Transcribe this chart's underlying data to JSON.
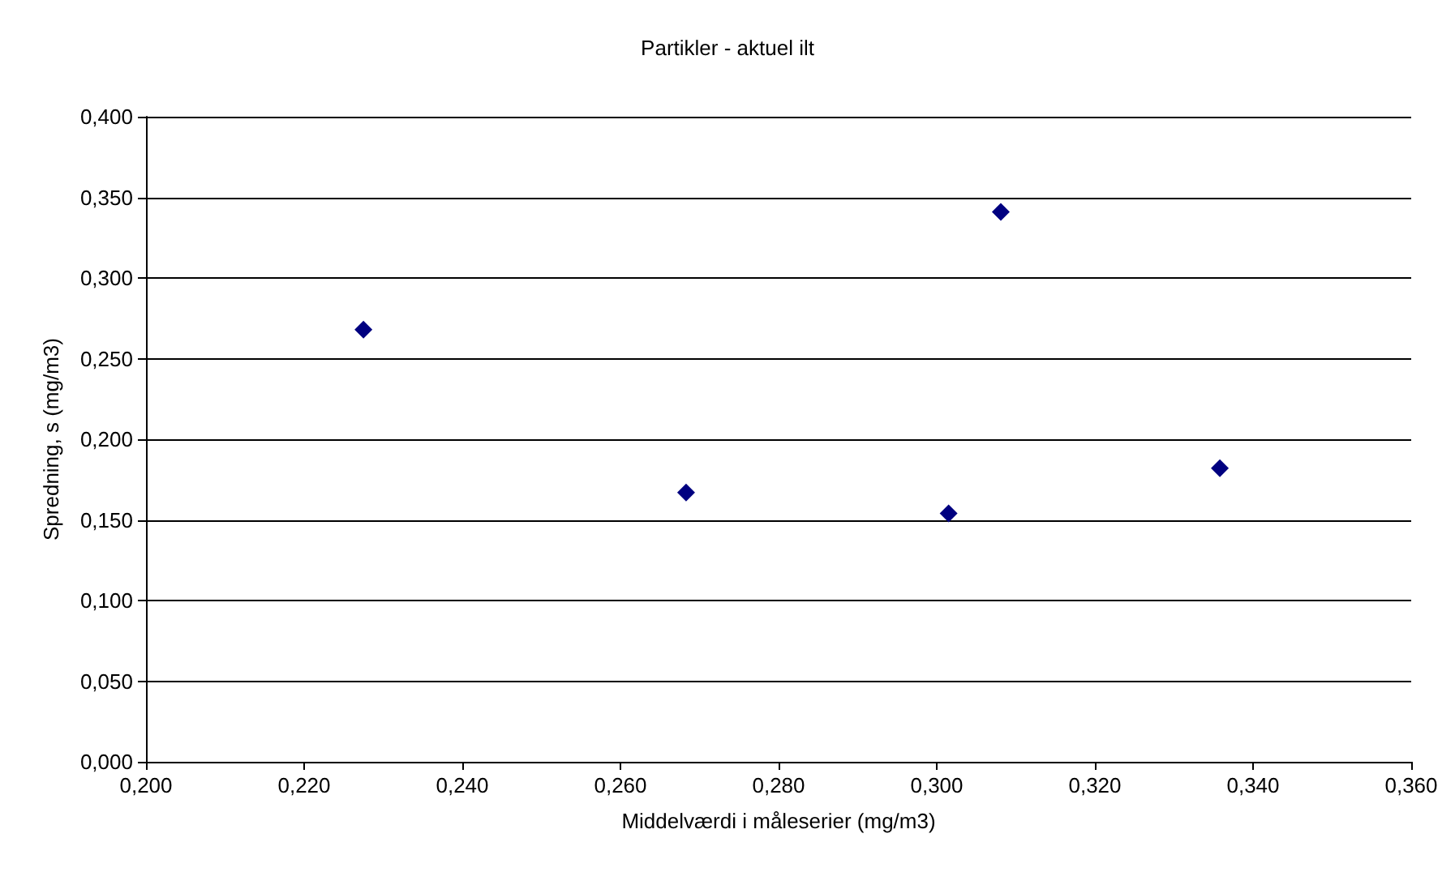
{
  "chart_data": {
    "type": "scatter",
    "title": "Partikler - aktuel ilt",
    "xlabel": "Middelværdi i måleserier (mg/m3)",
    "ylabel": "Spredning, s (mg/m3)",
    "x": [
      0.2275,
      0.2683,
      0.3015,
      0.3081,
      0.3358
    ],
    "series": [
      {
        "color": "#000080",
        "values": [
          0.268,
          0.167,
          0.154,
          0.341,
          0.182
        ]
      }
    ],
    "xlim": [
      0.2,
      0.36
    ],
    "xticks": [
      {
        "value": 0.2,
        "label": "0,200"
      },
      {
        "value": 0.22,
        "label": "0,220"
      },
      {
        "value": 0.24,
        "label": "0,240"
      },
      {
        "value": 0.26,
        "label": "0,260"
      },
      {
        "value": 0.28,
        "label": "0,280"
      },
      {
        "value": 0.3,
        "label": "0,300"
      },
      {
        "value": 0.32,
        "label": "0,320"
      },
      {
        "value": 0.34,
        "label": "0,340"
      },
      {
        "value": 0.36,
        "label": "0,360"
      }
    ],
    "ylim": [
      0,
      0.4
    ],
    "yticks": [
      {
        "value": 0,
        "label": "0,000"
      },
      {
        "value": 0.05,
        "label": "0,050"
      },
      {
        "value": 0.1,
        "label": "0,100"
      },
      {
        "value": 0.15,
        "label": "0,150"
      },
      {
        "value": 0.2,
        "label": "0,200"
      },
      {
        "value": 0.25,
        "label": "0,250"
      },
      {
        "value": 0.3,
        "label": "0,300"
      },
      {
        "value": 0.35,
        "label": "0,350"
      },
      {
        "value": 0.4,
        "label": "0,400"
      }
    ],
    "grid": "y",
    "marker": "diamond"
  }
}
